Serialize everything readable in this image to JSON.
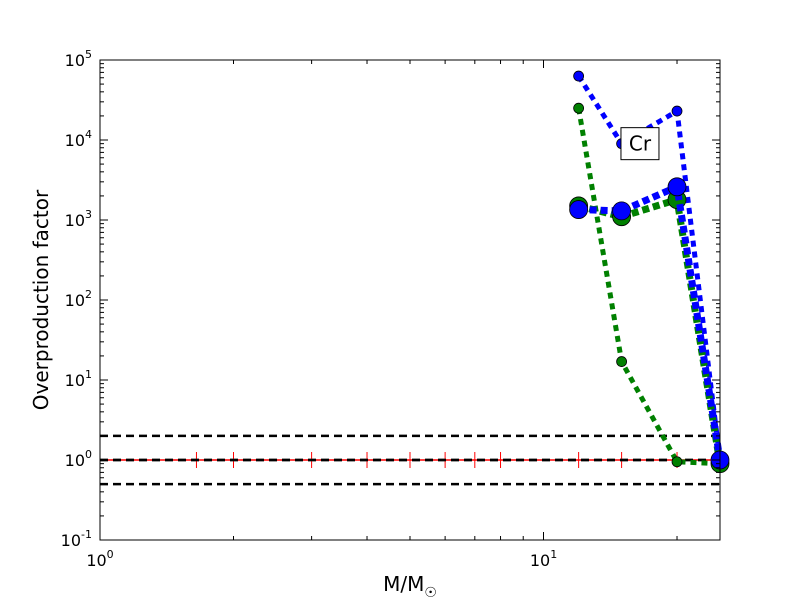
{
  "chart_data": {
    "type": "line",
    "title": "",
    "xlabel_main": "M/M",
    "xlabel_sub": "☉",
    "ylabel": "Overproduction factor",
    "xscale": "log",
    "yscale": "log",
    "xlim": [
      1,
      25
    ],
    "ylim": [
      0.1,
      100000
    ],
    "x_ticks": [
      {
        "value": 1,
        "base": "10",
        "exp": "0"
      },
      {
        "value": 10,
        "base": "10",
        "exp": "1"
      }
    ],
    "y_ticks": [
      {
        "value": 0.1,
        "base": "10",
        "exp": "-1"
      },
      {
        "value": 1,
        "base": "10",
        "exp": "0"
      },
      {
        "value": 10,
        "base": "10",
        "exp": "1"
      },
      {
        "value": 100,
        "base": "10",
        "exp": "2"
      },
      {
        "value": 1000,
        "base": "10",
        "exp": "3"
      },
      {
        "value": 10000,
        "base": "10",
        "exp": "4"
      },
      {
        "value": 100000,
        "base": "10",
        "exp": "5"
      }
    ],
    "annotation": {
      "text": "Cr",
      "x": 16.5,
      "y": 9000
    },
    "reference_lines": [
      {
        "y": 2.0,
        "color": "#000000",
        "style": "dashed"
      },
      {
        "y": 1.0,
        "color": "#000000",
        "style": "dashed"
      },
      {
        "y": 0.5,
        "color": "#000000",
        "style": "dashed"
      }
    ],
    "red_line": {
      "y": 1.0,
      "color": "#ff0000",
      "markers_x": [
        1.65,
        2,
        3,
        4,
        5,
        6,
        7,
        8,
        12,
        15,
        20,
        25
      ]
    },
    "series": [
      {
        "color": "#008000",
        "marker_size": "small",
        "line_weight": "thin",
        "x": [
          12,
          15,
          20,
          25
        ],
        "y": [
          25000,
          17,
          0.95,
          0.9
        ]
      },
      {
        "color": "#0000ff",
        "marker_size": "small",
        "line_weight": "thin",
        "x": [
          12,
          15,
          20,
          25
        ],
        "y": [
          63000,
          9000,
          23000,
          1.0
        ]
      },
      {
        "color": "#008000",
        "marker_size": "large",
        "line_weight": "thick",
        "x": [
          12,
          15,
          20,
          25
        ],
        "y": [
          1500,
          1100,
          1800,
          0.9
        ]
      },
      {
        "color": "#0000ff",
        "marker_size": "large",
        "line_weight": "thick",
        "x": [
          12,
          15,
          20,
          25
        ],
        "y": [
          1350,
          1300,
          2600,
          1.0
        ]
      }
    ]
  }
}
